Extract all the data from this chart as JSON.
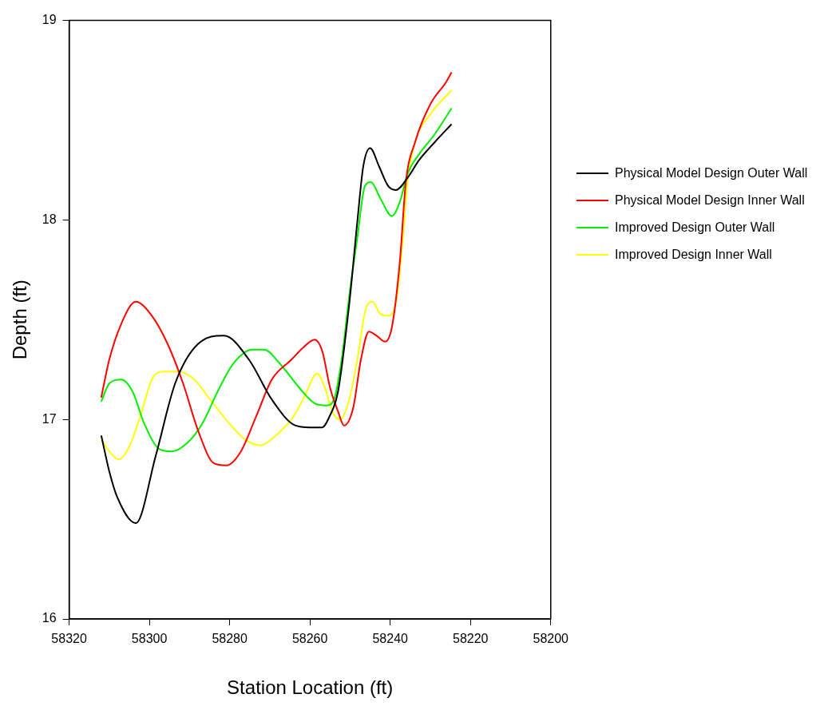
{
  "chart_data": {
    "type": "line",
    "xlabel": "Station Location (ft)",
    "ylabel": "Depth (ft)",
    "xlim": [
      58320,
      58200
    ],
    "xticks": [
      58320,
      58300,
      58280,
      58260,
      58240,
      58220,
      58200
    ],
    "ylim": [
      16,
      19
    ],
    "yticks": [
      16,
      17,
      18,
      19
    ],
    "grid": false,
    "legend": "right",
    "marker": "none",
    "line_style": "solid",
    "series": [
      {
        "name": "Physical Model Design Outer Wall",
        "color": "#000000",
        "x": [
          58312,
          58310,
          58308,
          58303.4,
          58298.4,
          58293.6,
          58287.8,
          58281.4,
          58275.2,
          58269.5,
          58263.7,
          58260,
          58257,
          58255,
          58253,
          58250.2,
          58248.2,
          58246.7,
          58245,
          58242.8,
          58240.5,
          58238.6,
          58235.7,
          58232.8,
          58228.9,
          58224.7
        ],
        "values": [
          16.92,
          16.74,
          16.61,
          16.48,
          16.82,
          17.18,
          17.38,
          17.42,
          17.3,
          17.1,
          16.97,
          16.96,
          16.96,
          17.02,
          17.14,
          17.58,
          17.99,
          18.27,
          18.36,
          18.27,
          18.17,
          18.15,
          18.21,
          18.3,
          18.39,
          18.48
        ]
      },
      {
        "name": "Physical Model Design Inner Wall",
        "color": "#ff0000",
        "x": [
          58312,
          58310,
          58307,
          58303.4,
          58299.4,
          58295.5,
          58291.6,
          58287.8,
          58283.9,
          58280.8,
          58277.2,
          58273.3,
          58269.5,
          58264.6,
          58261.7,
          58258.8,
          58256.9,
          58255,
          58253,
          58251.5,
          58249.2,
          58247.3,
          58245.3,
          58243.4,
          58241.3,
          58239.6,
          58237.6,
          58236.1,
          58233.8,
          58230,
          58226.1,
          58224.7
        ],
        "values": [
          17.11,
          17.3,
          17.48,
          17.59,
          17.52,
          17.38,
          17.18,
          16.94,
          16.78,
          16.77,
          16.84,
          17.02,
          17.2,
          17.3,
          17.36,
          17.4,
          17.34,
          17.16,
          17.04,
          16.97,
          17.06,
          17.3,
          17.44,
          17.42,
          17.39,
          17.46,
          17.79,
          18.19,
          18.39,
          18.58,
          18.69,
          18.74
        ]
      },
      {
        "name": "Improved Design Outer Wall",
        "color": "#00ee00",
        "x": [
          58312,
          58310,
          58307,
          58304.2,
          58301.3,
          58297.4,
          58294.5,
          58290.7,
          58286.8,
          58283,
          58279.1,
          58274.3,
          58271.4,
          58267.5,
          58262.7,
          58258.8,
          58256,
          58254,
          58252.1,
          58250.2,
          58248.2,
          58246.3,
          58244.8,
          58242.5,
          58239.6,
          58237.6,
          58235.7,
          58232.8,
          58228.9,
          58224.7
        ],
        "values": [
          17.09,
          17.18,
          17.2,
          17.14,
          16.98,
          16.85,
          16.84,
          16.88,
          16.98,
          17.14,
          17.28,
          17.35,
          17.35,
          17.28,
          17.16,
          17.08,
          17.07,
          17.1,
          17.3,
          17.62,
          17.91,
          18.17,
          18.19,
          18.11,
          18.02,
          18.09,
          18.23,
          18.33,
          18.43,
          18.56
        ]
      },
      {
        "name": "Improved Design Inner Wall",
        "color": "#ffff00",
        "x": [
          58312,
          58310,
          58307.7,
          58305.1,
          58302.2,
          58299.4,
          58296.5,
          58293,
          58288.8,
          58284.9,
          58280.1,
          58276.2,
          58272.3,
          58268.5,
          58264.6,
          58261.7,
          58258.2,
          58256.3,
          58254.4,
          58252.5,
          58250.2,
          58248.2,
          58246,
          58244.4,
          58242.5,
          58240.5,
          58238.6,
          58237,
          58235.7,
          58233.8,
          58230,
          58224.7
        ],
        "values": [
          16.9,
          16.84,
          16.8,
          16.86,
          17.02,
          17.2,
          17.24,
          17.24,
          17.2,
          17.1,
          16.98,
          16.9,
          16.87,
          16.92,
          17.0,
          17.1,
          17.23,
          17.16,
          17.04,
          17.0,
          17.1,
          17.3,
          17.56,
          17.59,
          17.53,
          17.52,
          17.58,
          17.87,
          18.19,
          18.39,
          18.53,
          18.65
        ]
      }
    ]
  }
}
